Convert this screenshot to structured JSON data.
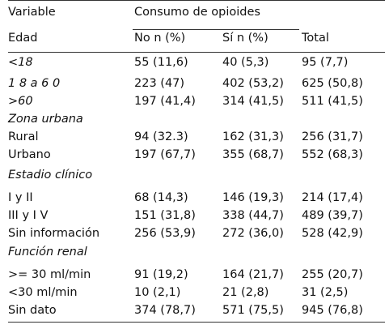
{
  "header": {
    "variable": "Variable",
    "group": "Consumo de opioides",
    "edad": "Edad",
    "no": "No n (%)",
    "si": "Sí n (%)",
    "total": "Total"
  },
  "rows": [
    {
      "label": "<18",
      "no": "55 (11,6)",
      "si": "40 (5,3)",
      "total": "95 (7,7)"
    },
    {
      "label": "1 8 a 6 0",
      "no": "223 (47)",
      "si": "402 (53,2)",
      "total": "625 (50,8)"
    },
    {
      "label": ">60",
      "no": "197 (41,4)",
      "si": "314 (41,5)",
      "total": "511 (41,5)"
    },
    {
      "label": "Zona urbana"
    },
    {
      "label": "Rural",
      "no": "94 (32.3)",
      "si": "162 (31,3)",
      "total": "256 (31,7)"
    },
    {
      "label": "Urbano",
      "no": "197 (67,7)",
      "si": "355 (68,7)",
      "total": "552 (68,3)"
    },
    {
      "label": "Estadio clínico"
    },
    {
      "label": "I y II",
      "no": "68 (14,3)",
      "si": "146 (19,3)",
      "total": "214 (17,4)"
    },
    {
      "label": "III y I V",
      "no": "151 (31,8)",
      "si": "338 (44,7)",
      "total": "489 (39,7)"
    },
    {
      "label": "Sin información",
      "no": "256 (53,9)",
      "si": "272 (36,0)",
      "total": "528 (42,9)"
    },
    {
      "label": "Función renal"
    },
    {
      "label": ">= 30 ml/min",
      "no": "91 (19,2)",
      "si": "164 (21,7)",
      "total": "255 (20,7)"
    },
    {
      "label": "<30 ml/min",
      "no": "10 (2,1)",
      "si": "21 (2,8)",
      "total": "31 (2,5)"
    },
    {
      "label": "Sin dato",
      "no": "374 (78,7)",
      "si": "571 (75,5)",
      "total": "945 (76,8)"
    }
  ]
}
